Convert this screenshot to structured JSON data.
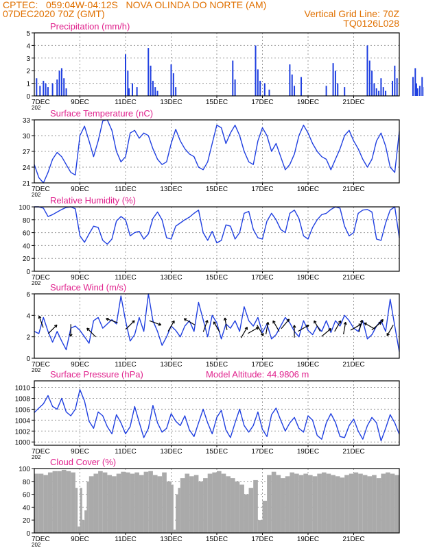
{
  "header": {
    "line1_left": "CPTEC:   059:04W-04:12S   NOVA OLINDA DO NORTE (AM)",
    "line2_left": "07DEC2020 70Z (GMT)",
    "line2_right": "Vertical Grid Line: 70Z",
    "line3_right": "TQ0126L028"
  },
  "colors": {
    "header": "#e07000",
    "title": "#e0208c",
    "series": "#1f3fe0",
    "cloud": "#aaaaaa",
    "grid": "#999999"
  },
  "x_axis": {
    "start_label": "7DEC",
    "end_stub": "202",
    "ticks": [
      "9DEC",
      "11DEC",
      "13DEC",
      "15DEC",
      "17DEC",
      "19DEC",
      "21DEC"
    ]
  },
  "chart_data": [
    {
      "type": "bar",
      "title": "Precipitation (mm/h)",
      "ylim": [
        0,
        5
      ],
      "yticks": [
        0,
        1,
        2,
        3,
        4,
        5
      ],
      "grid": true,
      "x": [
        0.1,
        0.25,
        0.4,
        0.5,
        0.6,
        0.8,
        1.0,
        1.1,
        1.2,
        1.3,
        1.4,
        4.0,
        4.1,
        4.15,
        4.3,
        4.5,
        5.0,
        5.1,
        5.2,
        5.3,
        5.4,
        6.0,
        6.1,
        6.2,
        8.7,
        8.8,
        9.7,
        9.8,
        9.9,
        10.1,
        10.3,
        11.2,
        11.3,
        11.4,
        11.7,
        12.8,
        13.1,
        13.2,
        13.3,
        13.6,
        14.6,
        14.7,
        14.8,
        14.9,
        15.0,
        15.1,
        15.2,
        15.3,
        15.4,
        15.7,
        15.8,
        15.9,
        16.6,
        16.7,
        16.75,
        16.8,
        16.9,
        17.0,
        17.1
      ],
      "values": [
        1.4,
        0.8,
        1.2,
        1.0,
        0.7,
        1.0,
        1.3,
        2.0,
        2.2,
        1.4,
        0.6,
        3.3,
        2.0,
        0.6,
        1.0,
        0.7,
        3.8,
        2.4,
        1.2,
        0.7,
        0.4,
        2.5,
        1.8,
        0.7,
        2.8,
        1.3,
        4.0,
        2.1,
        1.2,
        1.0,
        0.5,
        2.5,
        1.7,
        0.8,
        1.5,
        0.8,
        2.6,
        2.0,
        1.0,
        0.7,
        4.0,
        2.8,
        2.0,
        1.0,
        0.6,
        0.4,
        1.4,
        0.7,
        0.4,
        1.2,
        2.4,
        1.4,
        1.5,
        2.2,
        1.0,
        0.6,
        0.8,
        1.5,
        0.7
      ]
    },
    {
      "type": "line",
      "title": "Surface Temperature (nC)",
      "ylim": [
        21,
        33
      ],
      "yticks": [
        21,
        24,
        27,
        30,
        33
      ],
      "grid": true,
      "x": [
        0,
        0.2,
        0.4,
        0.6,
        0.8,
        1.0,
        1.2,
        1.4,
        1.6,
        1.8,
        2.0,
        2.2,
        2.4,
        2.6,
        2.8,
        3.0,
        3.2,
        3.4,
        3.6,
        3.8,
        4.0,
        4.2,
        4.4,
        4.6,
        4.8,
        5.0,
        5.2,
        5.4,
        5.6,
        5.8,
        6.0,
        6.2,
        6.4,
        6.6,
        6.8,
        7.0,
        7.2,
        7.4,
        7.6,
        7.8,
        8.0,
        8.2,
        8.4,
        8.6,
        8.8,
        9.0,
        9.2,
        9.4,
        9.6,
        9.8,
        10.0,
        10.2,
        10.4,
        10.6,
        10.8,
        11.0,
        11.2,
        11.4,
        11.6,
        11.8,
        12.0,
        12.2,
        12.4,
        12.6,
        12.8,
        13.0,
        13.2,
        13.4,
        13.6,
        13.8,
        14.0,
        14.2,
        14.4,
        14.6,
        14.8,
        15.0,
        15.2,
        15.4,
        15.6,
        15.8,
        16.0
      ],
      "values": [
        24.5,
        22.0,
        21.0,
        23.0,
        25.5,
        26.8,
        26.0,
        24.5,
        23.0,
        22.5,
        30.0,
        31.8,
        29.0,
        26.0,
        29.0,
        32.8,
        33.0,
        31.0,
        27.0,
        25.0,
        26.0,
        30.5,
        31.0,
        29.5,
        30.5,
        30.0,
        27.5,
        25.5,
        24.5,
        25.0,
        28.5,
        31.2,
        29.0,
        27.5,
        26.5,
        26.0,
        24.0,
        23.5,
        25.0,
        28.5,
        32.0,
        31.5,
        28.5,
        30.5,
        32.0,
        30.0,
        27.0,
        25.0,
        24.5,
        29.0,
        31.5,
        30.0,
        27.0,
        28.5,
        26.0,
        23.5,
        24.5,
        26.5,
        30.0,
        32.0,
        30.5,
        28.5,
        27.0,
        26.0,
        25.5,
        23.5,
        25.5,
        27.5,
        30.0,
        31.0,
        29.0,
        27.5,
        25.5,
        24.0,
        25.5,
        29.0,
        30.5,
        28.0,
        24.0,
        23.0,
        30.8
      ]
    },
    {
      "type": "line",
      "title": "Relative Humidity (%)",
      "ylim": [
        0,
        100
      ],
      "yticks": [
        0,
        20,
        40,
        60,
        80,
        100
      ],
      "grid": true,
      "x": [
        0,
        0.2,
        0.4,
        0.6,
        0.8,
        1.0,
        1.2,
        1.4,
        1.6,
        1.8,
        2.0,
        2.2,
        2.4,
        2.6,
        2.8,
        3.0,
        3.2,
        3.4,
        3.6,
        3.8,
        4.0,
        4.2,
        4.4,
        4.6,
        4.8,
        5.0,
        5.2,
        5.4,
        5.6,
        5.8,
        6.0,
        6.2,
        6.4,
        6.6,
        6.8,
        7.0,
        7.2,
        7.4,
        7.6,
        7.8,
        8.0,
        8.2,
        8.4,
        8.6,
        8.8,
        9.0,
        9.2,
        9.4,
        9.6,
        9.8,
        10.0,
        10.2,
        10.4,
        10.6,
        10.8,
        11.0,
        11.2,
        11.4,
        11.6,
        11.8,
        12.0,
        12.2,
        12.4,
        12.6,
        12.8,
        13.0,
        13.2,
        13.4,
        13.6,
        13.8,
        14.0,
        14.2,
        14.4,
        14.6,
        14.8,
        15.0,
        15.2,
        15.4,
        15.6,
        15.8,
        16.0
      ],
      "values": [
        100,
        100,
        98,
        85,
        88,
        92,
        96,
        99,
        100,
        97,
        55,
        45,
        58,
        70,
        68,
        48,
        42,
        50,
        78,
        85,
        80,
        55,
        60,
        62,
        50,
        58,
        82,
        92,
        80,
        52,
        50,
        70,
        75,
        80,
        84,
        90,
        95,
        60,
        48,
        62,
        44,
        48,
        72,
        70,
        50,
        60,
        90,
        93,
        65,
        52,
        50,
        78,
        90,
        80,
        65,
        60,
        90,
        95,
        82,
        55,
        50,
        68,
        80,
        88,
        90,
        96,
        100,
        98,
        70,
        55,
        60,
        90,
        95,
        96,
        92,
        50,
        48,
        75,
        95,
        100,
        52
      ]
    },
    {
      "type": "line",
      "title": "Surface Wind (m/s)",
      "ylim": [
        0,
        6
      ],
      "yticks": [
        0,
        2,
        4,
        6
      ],
      "grid": true,
      "x": [
        0,
        0.2,
        0.4,
        0.6,
        0.8,
        1.0,
        1.2,
        1.4,
        1.6,
        1.8,
        2.0,
        2.2,
        2.4,
        2.6,
        2.8,
        3.0,
        3.2,
        3.4,
        3.6,
        3.8,
        4.0,
        4.2,
        4.4,
        4.6,
        4.8,
        5.0,
        5.2,
        5.4,
        5.6,
        5.8,
        6.0,
        6.2,
        6.4,
        6.6,
        6.8,
        7.0,
        7.2,
        7.4,
        7.6,
        7.8,
        8.0,
        8.2,
        8.4,
        8.6,
        8.8,
        9.0,
        9.2,
        9.4,
        9.6,
        9.8,
        10.0,
        10.2,
        10.4,
        10.6,
        10.8,
        11.0,
        11.2,
        11.4,
        11.6,
        11.8,
        12.0,
        12.2,
        12.4,
        12.6,
        12.8,
        13.0,
        13.2,
        13.4,
        13.6,
        13.8,
        14.0,
        14.2,
        14.4,
        14.6,
        14.8,
        15.0,
        15.2,
        15.4,
        15.6,
        15.8,
        16.0
      ],
      "values": [
        2.5,
        2.3,
        3.8,
        2.5,
        1.5,
        2.5,
        1.6,
        0.8,
        2.8,
        3.0,
        2.6,
        2.0,
        1.4,
        3.5,
        3.8,
        2.8,
        3.2,
        3.6,
        3.2,
        5.8,
        3.5,
        1.6,
        2.2,
        3.8,
        2.5,
        6.0,
        3.5,
        2.5,
        1.2,
        2.0,
        3.0,
        2.6,
        2.0,
        3.0,
        3.5,
        2.5,
        5.2,
        3.6,
        2.0,
        4.0,
        3.3,
        1.8,
        3.2,
        2.8,
        3.5,
        2.5,
        4.8,
        3.5,
        3.0,
        3.8,
        2.4,
        3.2,
        1.8,
        2.2,
        3.0,
        3.8,
        3.3,
        2.5,
        2.0,
        3.5,
        2.6,
        2.2,
        3.0,
        2.5,
        3.5,
        2.4,
        3.5,
        3.0,
        4.0,
        3.5,
        2.8,
        2.5,
        3.5,
        1.8,
        2.2,
        3.0,
        3.5,
        2.5,
        5.5,
        3.0,
        0.6
      ]
    },
    {
      "type": "line",
      "title": "Surface Pressure (hPa)",
      "subtitle": "Model Altitude: 44.9806 m",
      "ylim": [
        999.4,
        1011.2
      ],
      "yticks": [
        1000,
        1002,
        1004,
        1006,
        1008,
        1010
      ],
      "grid": true,
      "x": [
        0,
        0.2,
        0.4,
        0.6,
        0.8,
        1.0,
        1.2,
        1.4,
        1.6,
        1.8,
        2.0,
        2.2,
        2.4,
        2.6,
        2.8,
        3.0,
        3.2,
        3.4,
        3.6,
        3.8,
        4.0,
        4.2,
        4.4,
        4.6,
        4.8,
        5.0,
        5.2,
        5.4,
        5.6,
        5.8,
        6.0,
        6.2,
        6.4,
        6.6,
        6.8,
        7.0,
        7.2,
        7.4,
        7.6,
        7.8,
        8.0,
        8.2,
        8.4,
        8.6,
        8.8,
        9.0,
        9.2,
        9.4,
        9.6,
        9.8,
        10.0,
        10.2,
        10.4,
        10.6,
        10.8,
        11.0,
        11.2,
        11.4,
        11.6,
        11.8,
        12.0,
        12.2,
        12.4,
        12.6,
        12.8,
        13.0,
        13.2,
        13.4,
        13.6,
        13.8,
        14.0,
        14.2,
        14.4,
        14.6,
        14.8,
        15.0,
        15.2,
        15.4,
        15.6,
        15.8,
        16.0
      ],
      "values": [
        1005.4,
        1006.2,
        1007.0,
        1008.5,
        1006.5,
        1006.0,
        1008.0,
        1005.5,
        1004.8,
        1006.0,
        1009.6,
        1007.5,
        1003.8,
        1002.5,
        1005.5,
        1004.8,
        1002.8,
        1001.5,
        1005.0,
        1003.5,
        1001.5,
        1002.8,
        1006.5,
        1003.6,
        1000.8,
        1002.5,
        1006.7,
        1003.5,
        1001.8,
        1002.5,
        1005.2,
        1003.8,
        1003.0,
        1004.8,
        1002.2,
        1001.0,
        1003.5,
        1006.0,
        1003.5,
        1001.5,
        1004.5,
        1005.8,
        1002.2,
        1000.8,
        1003.5,
        1006.0,
        1003.0,
        1001.8,
        1003.0,
        1005.5,
        1002.3,
        1001.0,
        1005.0,
        1006.2,
        1004.0,
        1002.0,
        1003.5,
        1004.5,
        1002.5,
        1001.8,
        1004.8,
        1004.0,
        1001.2,
        1000.5,
        1003.5,
        1005.2,
        1003.6,
        1001.0,
        1000.8,
        1003.0,
        1004.2,
        1002.0,
        1000.5,
        1003.0,
        1004.5,
        1003.5,
        1000.2,
        1002.5,
        1005.0,
        1003.5,
        1001.4
      ]
    },
    {
      "type": "area",
      "title": "Cloud Cover (%)",
      "ylim": [
        0,
        100
      ],
      "yticks": [
        0,
        20,
        40,
        60,
        80,
        100
      ],
      "grid": true,
      "x": [
        0,
        0.2,
        0.4,
        0.6,
        0.8,
        1.0,
        1.2,
        1.4,
        1.6,
        1.8,
        1.9,
        2.0,
        2.1,
        2.2,
        2.3,
        2.4,
        2.6,
        2.8,
        3.0,
        3.2,
        3.4,
        3.6,
        3.8,
        4.0,
        4.2,
        4.4,
        4.6,
        4.8,
        5.0,
        5.2,
        5.4,
        5.6,
        5.8,
        6.0,
        6.1,
        6.2,
        6.3,
        6.4,
        6.6,
        6.8,
        7.0,
        7.2,
        7.4,
        7.6,
        7.8,
        8.0,
        8.2,
        8.4,
        8.6,
        8.8,
        9.0,
        9.2,
        9.4,
        9.6,
        9.8,
        10.0,
        10.2,
        10.4,
        10.6,
        10.8,
        11.0,
        11.2,
        11.4,
        11.6,
        11.8,
        12.0,
        12.2,
        12.4,
        12.6,
        12.8,
        13.0,
        13.2,
        13.4,
        13.6,
        13.8,
        14.0,
        14.2,
        14.4,
        14.6,
        14.8,
        15.0,
        15.2,
        15.4,
        15.6,
        15.8,
        16.0
      ],
      "values": [
        92,
        92,
        90,
        94,
        96,
        96,
        98,
        96,
        94,
        70,
        10,
        70,
        20,
        35,
        80,
        88,
        92,
        96,
        94,
        90,
        88,
        92,
        95,
        94,
        92,
        94,
        90,
        95,
        96,
        90,
        88,
        94,
        80,
        75,
        5,
        60,
        70,
        85,
        92,
        88,
        90,
        80,
        85,
        92,
        94,
        96,
        92,
        88,
        85,
        80,
        75,
        60,
        70,
        82,
        20,
        50,
        90,
        95,
        90,
        85,
        88,
        94,
        92,
        90,
        92,
        90,
        88,
        92,
        94,
        92,
        90,
        88,
        86,
        90,
        92,
        94,
        92,
        90,
        88,
        90,
        85,
        92,
        94,
        92,
        90,
        92
      ]
    }
  ],
  "wind_arrows": {
    "x": [
      0.3,
      0.8,
      1.6,
      2.5,
      3.4,
      4.2,
      5.3,
      6.0,
      6.8,
      7.5,
      8.0,
      8.4,
      9.2,
      9.6,
      9.9,
      10.2,
      10.6,
      11.0,
      11.4,
      11.8,
      12.4,
      12.8,
      13.3,
      13.6,
      14.1,
      14.3,
      14.7,
      15.0,
      15.1,
      15.6
    ],
    "y": [
      3.4,
      2.7,
      2.6,
      2.4,
      3.5,
      3.1,
      3.3,
      3.0,
      3.4,
      3.0,
      2.9,
      3.2,
      2.4,
      2.6,
      2.6,
      2.8,
      3.0,
      3.2,
      2.5,
      2.8,
      3.0,
      2.4,
      3.0,
      2.8,
      2.9,
      3.0,
      3.0,
      3.0,
      3.2,
      2.6
    ],
    "deg": [
      -110,
      -45,
      90,
      -135,
      -160,
      -45,
      20,
      -60,
      -150,
      -70,
      -120,
      -100,
      -60,
      -30,
      60,
      -80,
      -120,
      -50,
      -90,
      -30,
      -120,
      -40,
      -60,
      -80,
      -30,
      -75,
      -150,
      -40,
      -45,
      120
    ]
  }
}
